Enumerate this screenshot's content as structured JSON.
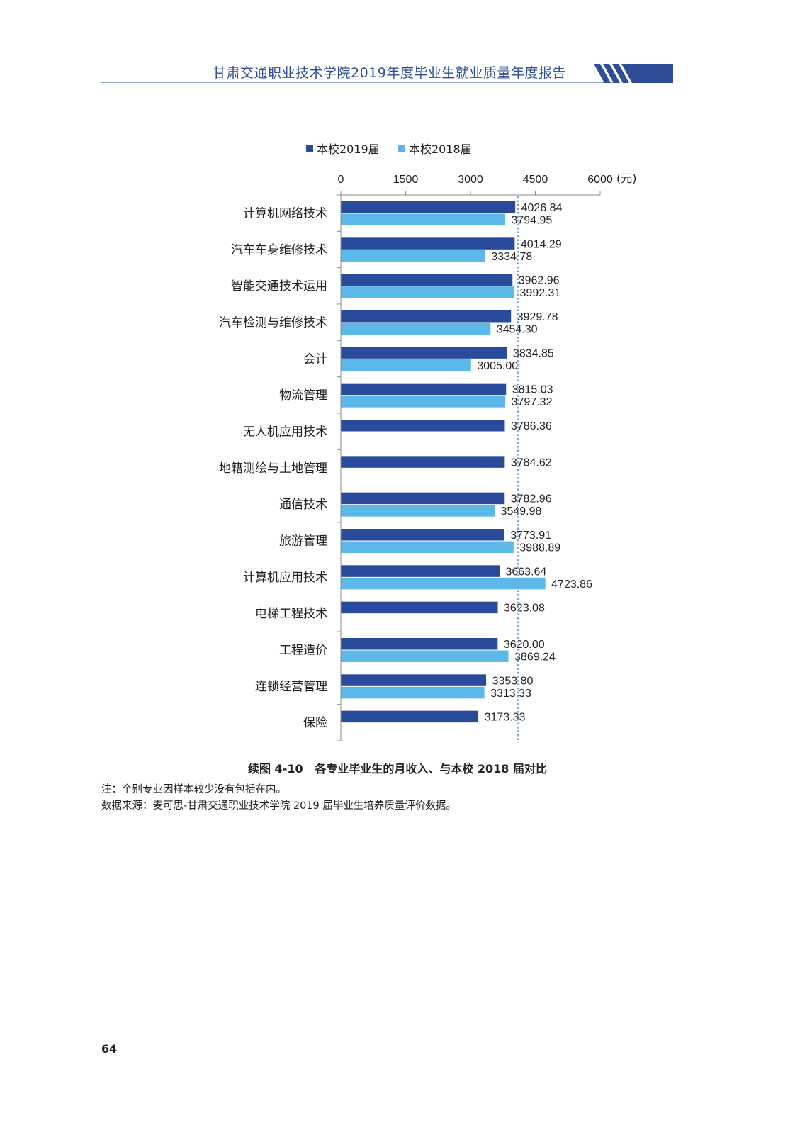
{
  "header": {
    "title": "甘肃交通职业技术学院2019年度毕业生就业质量年度报告"
  },
  "colors": {
    "series_2019": "#2a4b9b",
    "series_2018": "#5bb8e9",
    "header_blue": "#2e4f98",
    "reference_line": "#7ea4d6"
  },
  "chart_data": {
    "type": "bar",
    "orientation": "horizontal",
    "axis_position": "top",
    "xlim": [
      0,
      6000
    ],
    "ticks": [
      0,
      1500,
      3000,
      4500,
      6000
    ],
    "tick_labels": [
      "0",
      "1500",
      "3000",
      "4500",
      "6000"
    ],
    "unit_label": "(元)",
    "reference_line": 4100,
    "grid": false,
    "legend_position": "top",
    "categories": [
      "计算机网络技术",
      "汽车车身维修技术",
      "智能交通技术运用",
      "汽车检测与维修技术",
      "会计",
      "物流管理",
      "无人机应用技术",
      "地籍测绘与土地管理",
      "通信技术",
      "旅游管理",
      "计算机应用技术",
      "电梯工程技术",
      "工程造价",
      "连锁经营管理",
      "保险"
    ],
    "series": [
      {
        "name": "本校2019届",
        "values": [
          4026.84,
          4014.29,
          3962.96,
          3929.78,
          3834.85,
          3815.03,
          3786.36,
          3784.62,
          3782.96,
          3773.91,
          3663.64,
          3623.08,
          3620.0,
          3353.8,
          3173.33
        ],
        "labels": [
          "4026.84",
          "4014.29",
          "3962.96",
          "3929.78",
          "3834.85",
          "3815.03",
          "3786.36",
          "3784.62",
          "3782.96",
          "3773.91",
          "3663.64",
          "3623.08",
          "3620.00",
          "3353.80",
          "3173.33"
        ]
      },
      {
        "name": "本校2018届",
        "values": [
          3794.95,
          3334.78,
          3992.31,
          3454.3,
          3005.0,
          3797.32,
          null,
          null,
          3549.98,
          3988.89,
          4723.86,
          null,
          3869.24,
          3313.33,
          null
        ],
        "labels": [
          "3794.95",
          "3334.78",
          "3992.31",
          "3454.30",
          "3005.00",
          "3797.32",
          "",
          "",
          "3549.98",
          "3988.89",
          "4723.86",
          "",
          "3869.24",
          "3313.33",
          ""
        ]
      }
    ]
  },
  "caption": {
    "prefix": "续图 4-10",
    "text": "各专业毕业生的月收入、与本校 2018 届对比"
  },
  "notes": {
    "note1": "注：个别专业因样本较少没有包括在内。",
    "note2": "数据来源：麦可思-甘肃交通职业技术学院 2019 届毕业生培养质量评价数据。"
  },
  "page_number": "64"
}
